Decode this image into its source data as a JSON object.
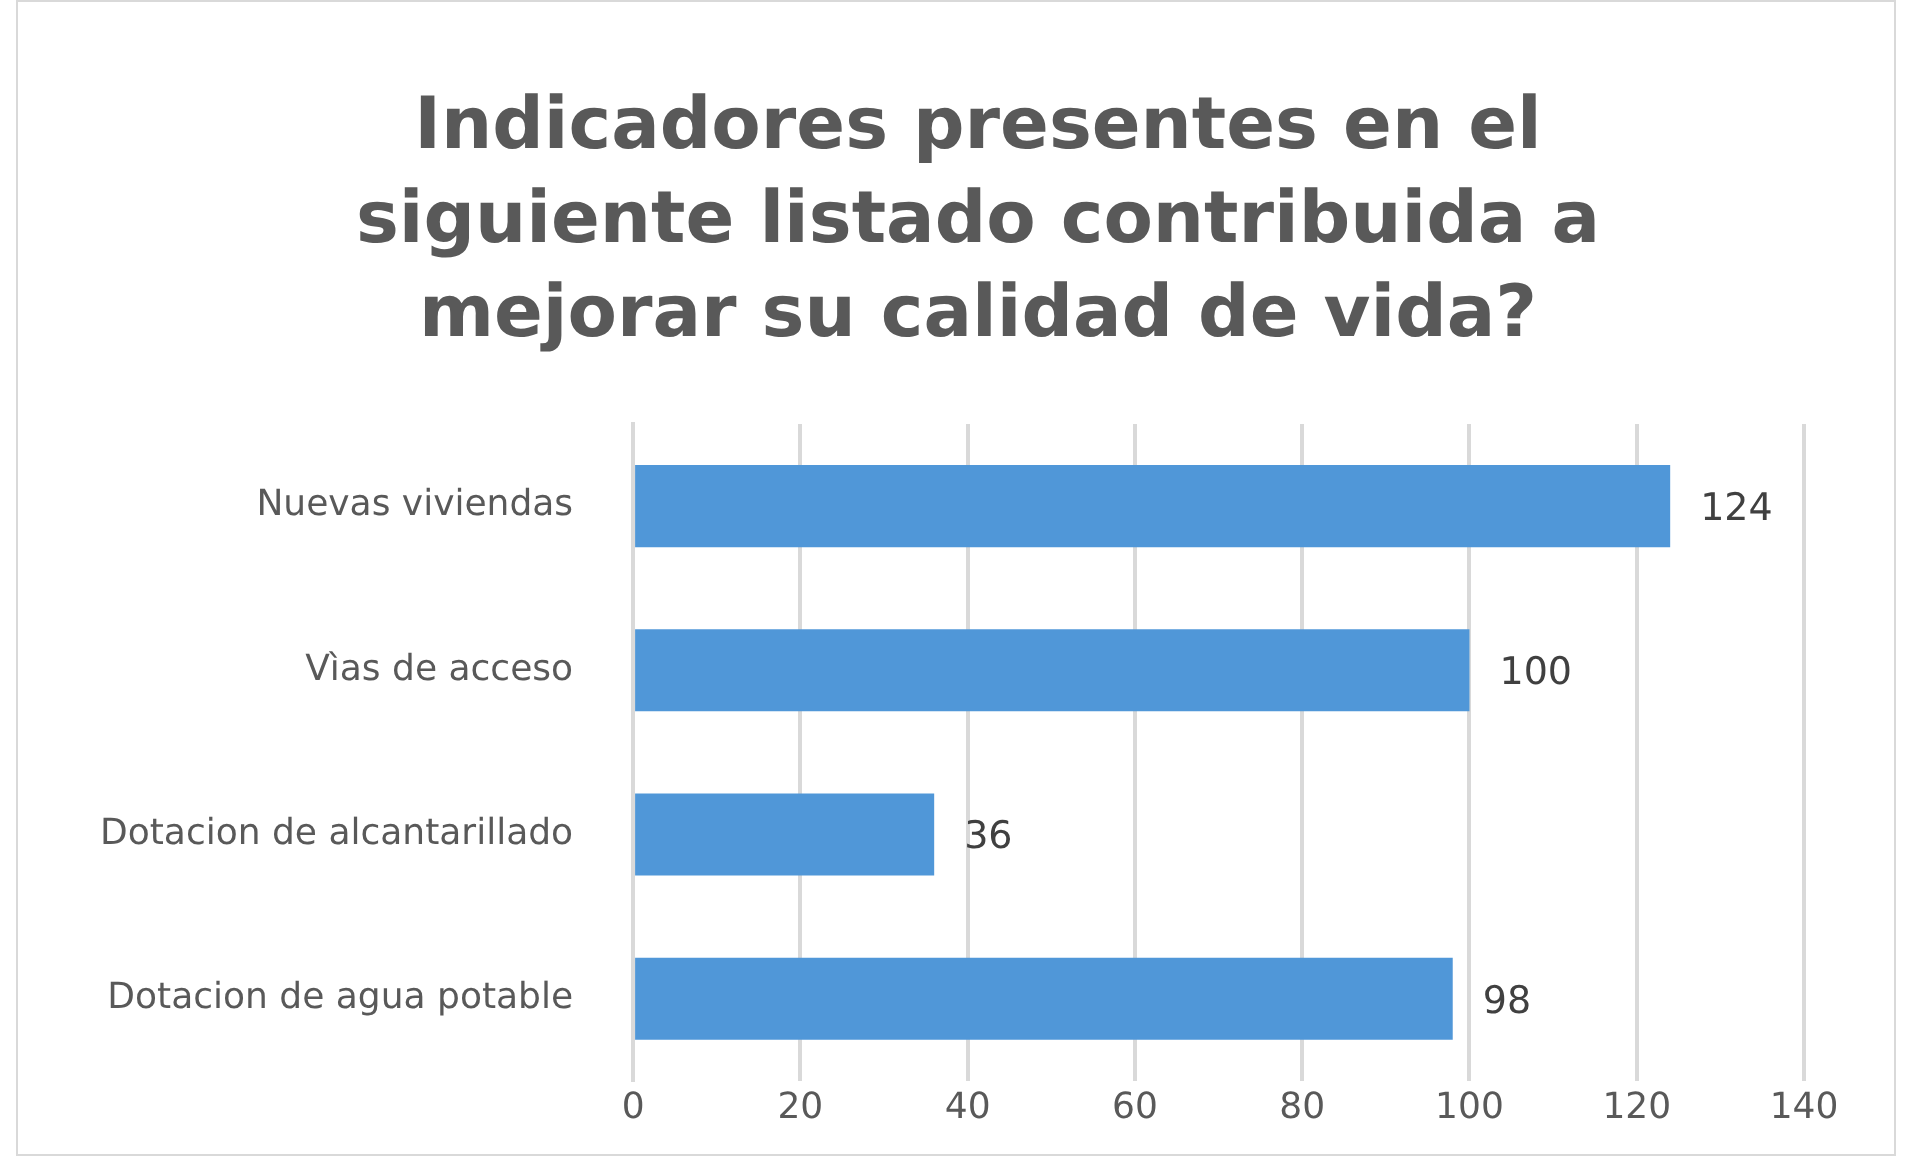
{
  "chart_data": {
    "type": "bar",
    "orientation": "horizontal",
    "title": "Indicadores presentes en el siguiente listado contribuida a mejorar su calidad de vida?",
    "categories": [
      "Nuevas viviendas",
      "Vìas de acceso",
      "Dotacion de alcantarillado",
      "Dotacion de agua potable"
    ],
    "values": [
      124,
      100,
      36,
      98
    ],
    "color": "#5097d8",
    "xlim": [
      0,
      140
    ],
    "xticks": [
      0,
      20,
      40,
      60,
      80,
      100,
      120,
      140
    ],
    "grid": "x",
    "data_labels": true,
    "legend": false
  }
}
